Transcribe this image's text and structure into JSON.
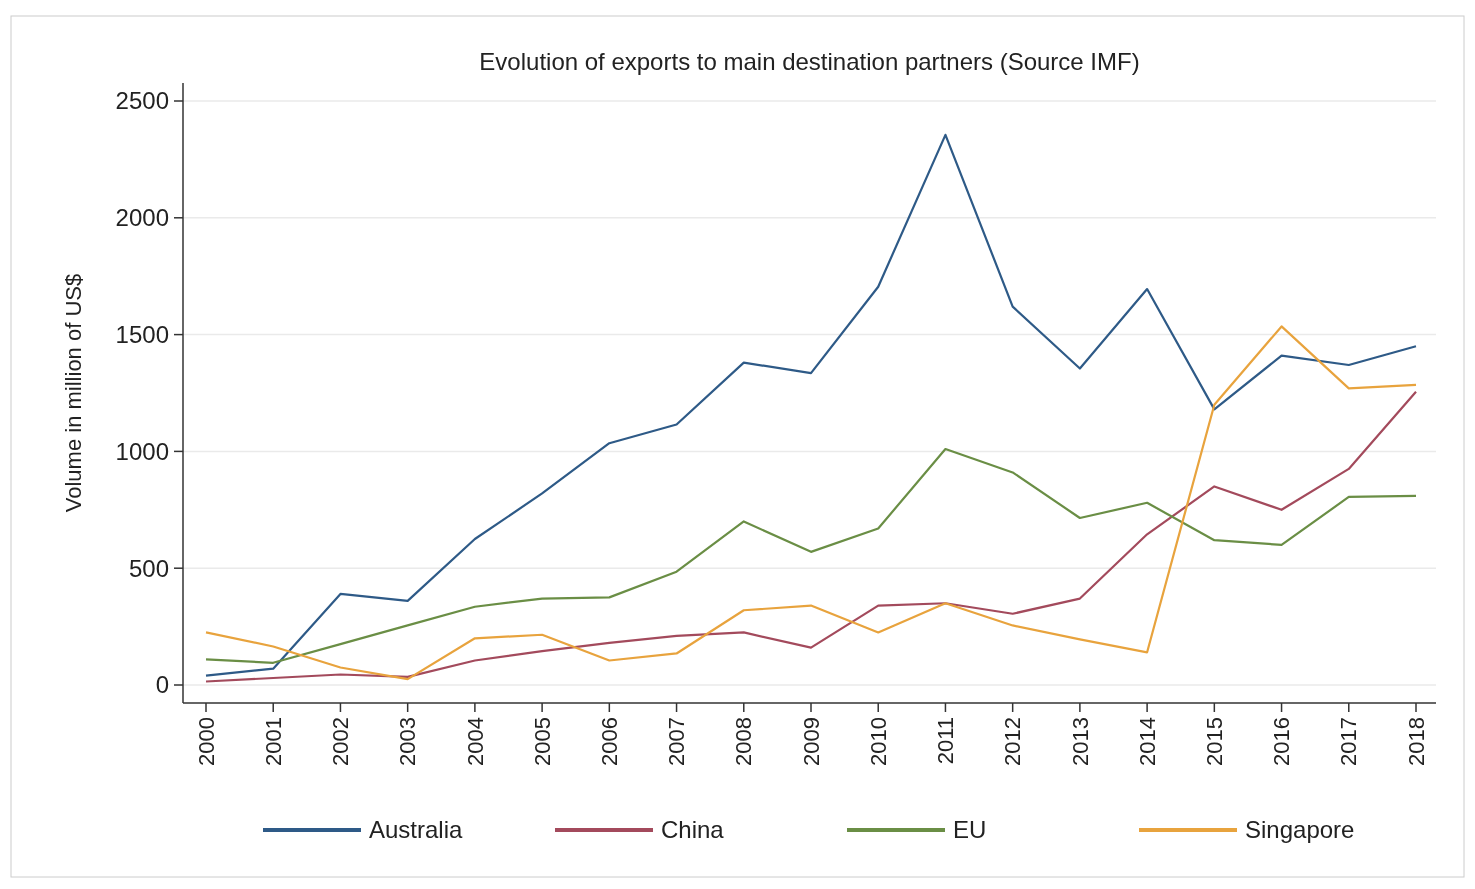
{
  "chart_data": {
    "type": "line",
    "title": "Evolution of exports to main destination partners (Source IMF)",
    "ylabel": "Volume in million of US$",
    "categories": [
      "2000",
      "2001",
      "2002",
      "2003",
      "2004",
      "2005",
      "2006",
      "2007",
      "2008",
      "2009",
      "2010",
      "2011",
      "2012",
      "2013",
      "2014",
      "2015",
      "2016",
      "2017",
      "2018"
    ],
    "series": [
      {
        "name": "Australia",
        "color": "#2e5a87",
        "values": [
          40,
          70,
          390,
          360,
          625,
          820,
          1035,
          1115,
          1380,
          1335,
          1705,
          2355,
          1620,
          1355,
          1695,
          1180,
          1410,
          1370,
          1450
        ]
      },
      {
        "name": "China",
        "color": "#a34a5c",
        "values": [
          15,
          30,
          45,
          35,
          105,
          145,
          180,
          210,
          225,
          160,
          340,
          350,
          305,
          370,
          645,
          850,
          750,
          925,
          1255
        ]
      },
      {
        "name": "EU",
        "color": "#6a8e45",
        "values": [
          110,
          95,
          175,
          255,
          335,
          370,
          375,
          485,
          700,
          570,
          670,
          1010,
          910,
          715,
          780,
          620,
          600,
          805,
          810
        ]
      },
      {
        "name": "Singapore",
        "color": "#e8a33d",
        "values": [
          225,
          165,
          75,
          25,
          200,
          215,
          105,
          135,
          320,
          340,
          225,
          350,
          255,
          195,
          140,
          1200,
          1535,
          1270,
          1285
        ]
      }
    ],
    "ylim": [
      0,
      2500
    ],
    "yticks": [
      0,
      500,
      1000,
      1500,
      2000,
      2500
    ],
    "grid": "y",
    "legend": "bottom",
    "marker": "none",
    "line_style": "solid"
  }
}
